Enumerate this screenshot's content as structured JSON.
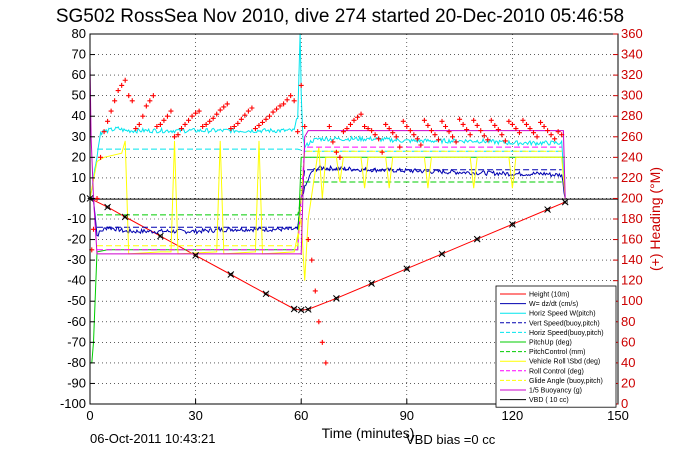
{
  "title": "SG502 RossSea Nov 2010, dive 274 started 20-Dec-2010 05:46:58",
  "footer": {
    "date": "06-Oct-2011 10:43:21",
    "vbd_bias": "VBD bias =0 cc"
  },
  "chart_data": {
    "type": "line",
    "title": "SG502 RossSea Nov 2010, dive 274 started 20-Dec-2010 05:46:58",
    "xlabel": "Time (minutes)",
    "ylabel": "",
    "ylabel_right": "(+) Heading (°M)",
    "xlim": [
      0,
      150
    ],
    "ylim": [
      -100,
      80
    ],
    "ylim_right": [
      0,
      360
    ],
    "xticks": [
      0,
      30,
      60,
      90,
      120,
      150
    ],
    "yticks": [
      80,
      70,
      60,
      50,
      40,
      30,
      20,
      10,
      0,
      -10,
      -20,
      -30,
      -40,
      -50,
      -60,
      -70,
      -80,
      -90,
      -100
    ],
    "yticks_right": [
      360,
      340,
      320,
      300,
      280,
      260,
      240,
      220,
      200,
      180,
      160,
      140,
      120,
      100,
      80,
      60,
      40,
      20,
      0
    ],
    "grid": true,
    "legend_position": "bottom-right",
    "colors": {
      "red": "#ff0000",
      "darkred": "#cc0000",
      "blue": "#0000b0",
      "cyan": "#00e5ee",
      "green": "#00cc00",
      "yellow": "#ffff00",
      "magenta": "#cc00cc",
      "black": "#000000"
    },
    "series": [
      {
        "name": "Height (10m)",
        "color": "#ff0000",
        "style": "solid",
        "marker": "x",
        "x": [
          0,
          5,
          10,
          20,
          30,
          40,
          50,
          58,
          60,
          62,
          70,
          80,
          90,
          100,
          110,
          120,
          130,
          135
        ],
        "y": [
          0,
          -4.2,
          -9,
          -18.3,
          -27.7,
          -37,
          -46.4,
          -53.8,
          -54.3,
          -54,
          -48.6,
          -41.4,
          -34.2,
          -27,
          -19.8,
          -12.6,
          -5.4,
          -1.8
        ]
      },
      {
        "name": "W= dz/dt (cm/s)",
        "color": "#0000b0",
        "style": "solid",
        "noisy": true,
        "x": [
          0,
          1,
          2,
          3,
          5,
          8,
          10,
          20,
          30,
          40,
          50,
          58,
          59,
          60,
          61,
          63,
          65,
          70,
          80,
          90,
          100,
          110,
          120,
          130,
          131,
          132,
          133,
          134,
          135
        ],
        "y": [
          0,
          0,
          -18,
          -16,
          -14,
          -15,
          -16,
          -16,
          -16,
          -15,
          -15,
          -15,
          -15,
          0,
          5,
          13,
          15,
          14.5,
          14,
          13.5,
          13,
          12.5,
          12,
          12,
          11.5,
          11.5,
          11.5,
          11.5,
          0
        ]
      },
      {
        "name": "Horiz Speed W(pitch)",
        "color": "#00e5ee",
        "style": "solid",
        "noisy": true,
        "x": [
          0,
          1,
          3,
          5,
          8,
          10,
          20,
          30,
          40,
          50,
          58,
          59,
          59.7,
          60,
          60.5,
          61,
          63,
          65,
          70,
          80,
          90,
          100,
          110,
          120,
          130,
          134,
          135
        ],
        "y": [
          0,
          10,
          32,
          33,
          34,
          33,
          33,
          33,
          33,
          33,
          33,
          40,
          80,
          50,
          30,
          25,
          28,
          29,
          29,
          29,
          28,
          28,
          28,
          27,
          27,
          27,
          0
        ]
      },
      {
        "name": "Vert Speed(buoy,pitch)",
        "color": "#0000b0",
        "style": "dashed",
        "x": [
          2,
          58.5,
          59,
          61,
          63,
          134
        ],
        "y": [
          -14,
          -14,
          -14,
          14,
          14,
          14
        ]
      },
      {
        "name": "Horiz Speed(buoy,pitch)",
        "color": "#00e5ee",
        "style": "dashed",
        "x": [
          2,
          58.5,
          59,
          61,
          63,
          134
        ],
        "y": [
          24,
          24,
          24,
          23,
          23,
          23
        ]
      },
      {
        "name": "PitchUp (deg)",
        "color": "#00cc00",
        "style": "solid",
        "x": [
          0,
          0.5,
          1,
          2,
          5,
          58,
          59,
          60,
          62,
          64,
          135
        ],
        "y": [
          -80,
          -80,
          -70,
          -26,
          -25,
          -25,
          -25,
          20,
          20,
          20,
          20
        ]
      },
      {
        "name": "PitchControl (mm)",
        "color": "#00cc00",
        "style": "dashed",
        "x": [
          2,
          58.5,
          59,
          61,
          63,
          134
        ],
        "y": [
          -8,
          -8,
          -8,
          8,
          8,
          8
        ]
      },
      {
        "name": "Vehicle Roll \\Sbd (deg)",
        "color": "#ffff00",
        "style": "solid",
        "x": [
          0,
          2,
          4,
          9,
          10,
          11,
          20,
          23,
          24,
          25,
          36,
          37,
          38,
          47,
          48,
          49,
          58,
          60,
          61,
          62,
          65,
          66,
          67,
          70,
          71,
          72,
          77,
          78,
          79,
          84,
          85,
          86,
          95,
          96,
          97,
          108,
          109,
          110,
          119,
          120,
          121,
          130,
          134,
          135
        ],
        "y": [
          0,
          18,
          20,
          22,
          28,
          -27,
          -26,
          -26,
          28,
          -27,
          -26,
          28,
          -27,
          -26,
          28,
          -27,
          -26,
          -10,
          -40,
          -10,
          25,
          0,
          20,
          20,
          8,
          20,
          20,
          5,
          20,
          20,
          5,
          20,
          20,
          5,
          20,
          20,
          5,
          20,
          20,
          5,
          20,
          20,
          20,
          0
        ]
      },
      {
        "name": "Roll Control (deg)",
        "color": "#ff00ff",
        "style": "dashed",
        "x": [
          2,
          58.5,
          59,
          61,
          63,
          134
        ],
        "y": [
          -25,
          -25,
          -25,
          25,
          25,
          25
        ]
      },
      {
        "name": "Glide Angle (buoy,pitch)",
        "color": "#ffff00",
        "style": "dashed",
        "x": [
          2,
          58.5,
          59,
          61,
          63,
          134
        ],
        "y": [
          -23,
          -23,
          -23,
          23,
          23,
          23
        ]
      },
      {
        "name": "1/5 Buoyancy (g)",
        "color": "#cc00cc",
        "style": "solid",
        "x": [
          0,
          0.3,
          1,
          2,
          3,
          58,
          59,
          60,
          61,
          62,
          63,
          64,
          134,
          134.5,
          135
        ],
        "y": [
          65,
          30,
          0,
          -27,
          -27,
          -27,
          -27,
          -27,
          30,
          33,
          33,
          33,
          33,
          33,
          0
        ]
      },
      {
        "name": "VBD ( 10 cc)",
        "color": "#000000",
        "style": "solid",
        "x": [
          0,
          150
        ],
        "y": [
          -0.3,
          -0.3
        ]
      }
    ],
    "heading": {
      "name": "(+) Heading (°M)",
      "color": "#ff0000",
      "marker": "+",
      "x": [
        0.5,
        1,
        2,
        3,
        4,
        5,
        6,
        7,
        8,
        9,
        10,
        11,
        12,
        13,
        14,
        15,
        16,
        17,
        18,
        19,
        20,
        21,
        22,
        23,
        24,
        25,
        26,
        27,
        28,
        29,
        30,
        31,
        32,
        33,
        34,
        35,
        36,
        37,
        38,
        39,
        40,
        41,
        42,
        43,
        44,
        45,
        46,
        47,
        48,
        49,
        50,
        51,
        52,
        53,
        54,
        55,
        56,
        57,
        58,
        59,
        60,
        61,
        62,
        63,
        64,
        65,
        66,
        67,
        68,
        69,
        70,
        71,
        72,
        73,
        74,
        75,
        76,
        77,
        78,
        79,
        80,
        81,
        82,
        83,
        84,
        85,
        86,
        87,
        88,
        89,
        90,
        91,
        92,
        93,
        94,
        95,
        96,
        97,
        98,
        99,
        100,
        101,
        102,
        103,
        104,
        105,
        106,
        107,
        108,
        109,
        110,
        111,
        112,
        113,
        114,
        115,
        116,
        117,
        118,
        119,
        120,
        121,
        122,
        123,
        124,
        125,
        126,
        127,
        128,
        129,
        130,
        131,
        132,
        133,
        134
      ],
      "y": [
        150,
        170,
        200,
        240,
        265,
        275,
        285,
        295,
        305,
        310,
        315,
        300,
        295,
        268,
        272,
        280,
        290,
        295,
        300,
        270,
        272,
        276,
        280,
        285,
        260,
        262,
        268,
        272,
        276,
        280,
        283,
        285,
        270,
        272,
        275,
        278,
        282,
        286,
        289,
        292,
        268,
        270,
        273,
        277,
        281,
        285,
        288,
        268,
        271,
        274,
        277,
        280,
        284,
        287,
        290,
        292,
        296,
        300,
        295,
        265,
        310,
        270,
        160,
        140,
        110,
        80,
        60,
        40,
        270,
        255,
        245,
        240,
        265,
        268,
        272,
        276,
        279,
        282,
        270,
        268,
        266,
        262,
        258,
        245,
        272,
        268,
        264,
        260,
        250,
        275,
        270,
        266,
        262,
        258,
        252,
        276,
        271,
        266,
        262,
        257,
        275,
        270,
        265,
        260,
        255,
        277,
        272,
        267,
        262,
        276,
        271,
        266,
        261,
        257,
        276,
        271,
        267,
        262,
        256,
        275,
        272,
        268,
        264,
        276,
        272,
        268,
        264,
        260,
        274,
        270,
        266,
        262,
        258,
        265,
        262
      ]
    }
  }
}
